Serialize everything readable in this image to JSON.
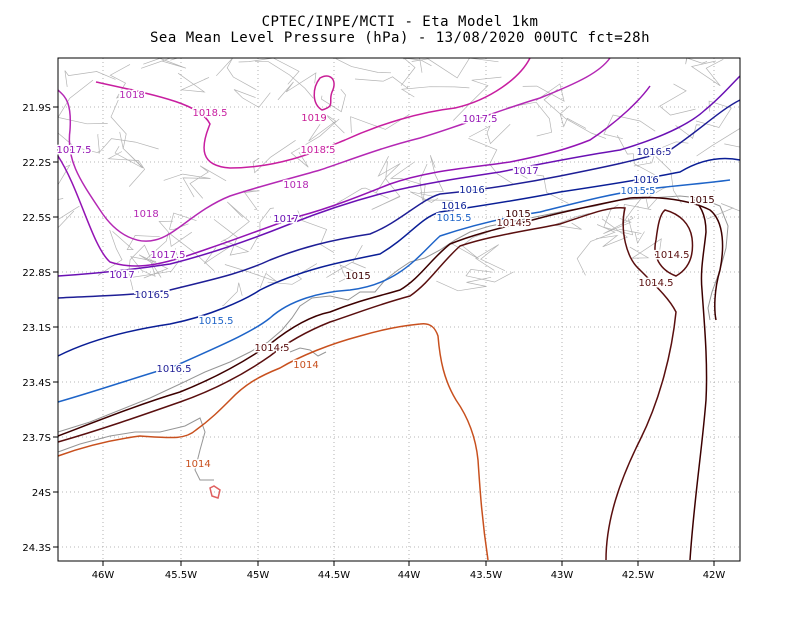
{
  "header": {
    "title_line1": "CPTEC/INPE/MCTI -  Eta Model 1km",
    "title_line2": "Sea Mean Level Pressure (hPa) - 13/08/2020 00UTC fct=28h"
  },
  "axes": {
    "lon_ticks": [
      "46W",
      "45.5W",
      "45W",
      "44.5W",
      "44W",
      "43.5W",
      "43W",
      "42.5W",
      "42W"
    ],
    "lat_ticks": [
      "21.9S",
      "22.2S",
      "22.5S",
      "22.8S",
      "23.1S",
      "23.4S",
      "23.7S",
      "24S",
      "24.3S"
    ]
  },
  "colors": {
    "1014": "#c8501e",
    "1014.5": "#5a0f0f",
    "1015": "#3c0000",
    "1015.5": "#1e64c8",
    "1016": "#0a1e96",
    "1016.5": "#1e1e96",
    "1017": "#6a10b4",
    "1017.5": "#9414b4",
    "1018": "#b428b4",
    "1018.5": "#c81ea0",
    "1019": "#c81e96",
    "coast": "#969696",
    "grid": "#a0a0a0"
  },
  "contour_labels": [
    {
      "text": "1018",
      "color": "1018"
    },
    {
      "text": "1018.5",
      "color": "1018.5"
    },
    {
      "text": "1019",
      "color": "1019"
    },
    {
      "text": "1018.5",
      "color": "1018.5"
    },
    {
      "text": "1017.5",
      "color": "1017.5"
    },
    {
      "text": "1017.5",
      "color": "1017.5"
    },
    {
      "text": "1018",
      "color": "1018"
    },
    {
      "text": "1018",
      "color": "1018"
    },
    {
      "text": "1017",
      "color": "1017"
    },
    {
      "text": "1017.5",
      "color": "1017.5"
    },
    {
      "text": "1017",
      "color": "1017"
    },
    {
      "text": "1016.5",
      "color": "1016.5"
    },
    {
      "text": "1017",
      "color": "1017"
    },
    {
      "text": "1016.5",
      "color": "1016.5"
    },
    {
      "text": "1016",
      "color": "1016"
    },
    {
      "text": "1015.5",
      "color": "1015.5"
    },
    {
      "text": "1016.5",
      "color": "1016.5"
    },
    {
      "text": "1016",
      "color": "1016"
    },
    {
      "text": "1015.5",
      "color": "1015.5"
    },
    {
      "text": "1015",
      "color": "1015"
    },
    {
      "text": "1014.5",
      "color": "1014.5"
    },
    {
      "text": "1015",
      "color": "1015"
    },
    {
      "text": "1014.5",
      "color": "1014.5"
    },
    {
      "text": "1014.5",
      "color": "1014.5"
    },
    {
      "text": "1015",
      "color": "1015"
    },
    {
      "text": "1016",
      "color": "1016"
    },
    {
      "text": "1015.5",
      "color": "1015.5"
    },
    {
      "text": "1014.5",
      "color": "1014.5"
    },
    {
      "text": "1014",
      "color": "1014"
    },
    {
      "text": "1014",
      "color": "1014"
    }
  ]
}
